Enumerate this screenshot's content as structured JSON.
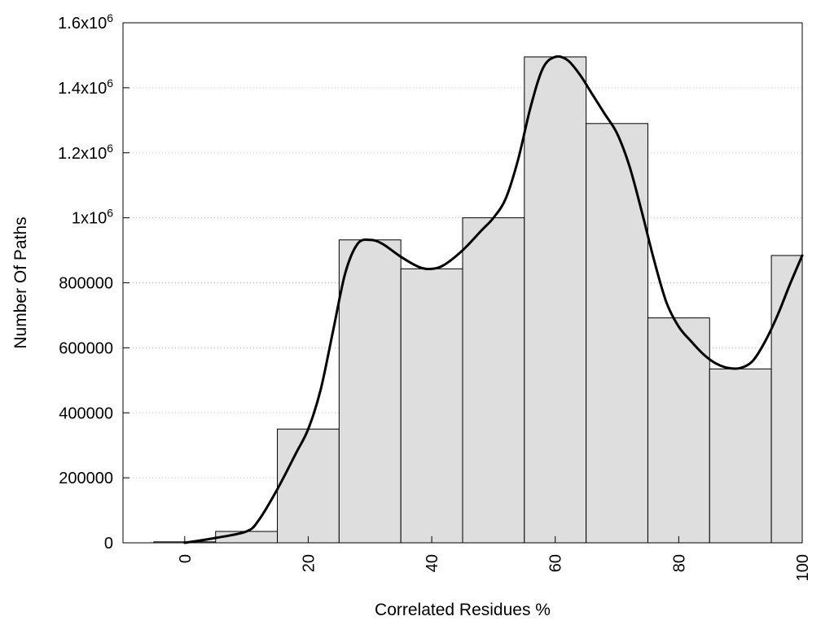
{
  "chart_data": {
    "type": "bar",
    "xlabel": "Correlated Residues %",
    "ylabel": "Number Of Paths",
    "xlim": [
      -10,
      100
    ],
    "ylim": [
      0,
      1600000
    ],
    "bin_width": 10,
    "x_ticks": [
      {
        "value": 0,
        "label": "0"
      },
      {
        "value": 20,
        "label": "20"
      },
      {
        "value": 40,
        "label": "40"
      },
      {
        "value": 60,
        "label": "60"
      },
      {
        "value": 80,
        "label": "80"
      },
      {
        "value": 100,
        "label": "100"
      }
    ],
    "y_ticks": [
      {
        "value": 0,
        "label": "0",
        "exp": ""
      },
      {
        "value": 200000,
        "label": "200000",
        "exp": ""
      },
      {
        "value": 400000,
        "label": "400000",
        "exp": ""
      },
      {
        "value": 600000,
        "label": "600000",
        "exp": ""
      },
      {
        "value": 800000,
        "label": "800000",
        "exp": ""
      },
      {
        "value": 1000000,
        "label": "1x10",
        "exp": "6"
      },
      {
        "value": 1200000,
        "label": "1.2x10",
        "exp": "6"
      },
      {
        "value": 1400000,
        "label": "1.4x10",
        "exp": "6"
      },
      {
        "value": 1600000,
        "label": "1.6x10",
        "exp": "6"
      }
    ],
    "bars": [
      {
        "x": 0,
        "value": 3000
      },
      {
        "x": 10,
        "value": 35000
      },
      {
        "x": 20,
        "value": 350000
      },
      {
        "x": 30,
        "value": 932000
      },
      {
        "x": 40,
        "value": 843000
      },
      {
        "x": 50,
        "value": 1000000
      },
      {
        "x": 60,
        "value": 1495000
      },
      {
        "x": 70,
        "value": 1290000
      },
      {
        "x": 80,
        "value": 692000
      },
      {
        "x": 90,
        "value": 535000
      },
      {
        "x": 100,
        "value": 884000
      }
    ],
    "curve": {
      "x": [
        0,
        5,
        10,
        12,
        15,
        18,
        20,
        22,
        24,
        26,
        28,
        30,
        32,
        35,
        38,
        40,
        42,
        45,
        48,
        50,
        52,
        54,
        56,
        58,
        60,
        62,
        64,
        66,
        68,
        70,
        72,
        74,
        76,
        78,
        80,
        82,
        84,
        86,
        88,
        90,
        92,
        94,
        96,
        98,
        100
      ],
      "y": [
        0,
        15000,
        35000,
        70000,
        165000,
        275000,
        350000,
        470000,
        650000,
        830000,
        920000,
        932000,
        920000,
        880000,
        848000,
        843000,
        855000,
        900000,
        960000,
        1000000,
        1060000,
        1180000,
        1340000,
        1460000,
        1495000,
        1485000,
        1440000,
        1380000,
        1320000,
        1260000,
        1160000,
        1020000,
        870000,
        740000,
        665000,
        620000,
        580000,
        552000,
        538000,
        538000,
        560000,
        620000,
        700000,
        795000,
        884000
      ],
      "color": "#000000"
    },
    "bar_fill": "#dedede",
    "bar_stroke": "#000000",
    "grid": "horizontal dotted"
  }
}
